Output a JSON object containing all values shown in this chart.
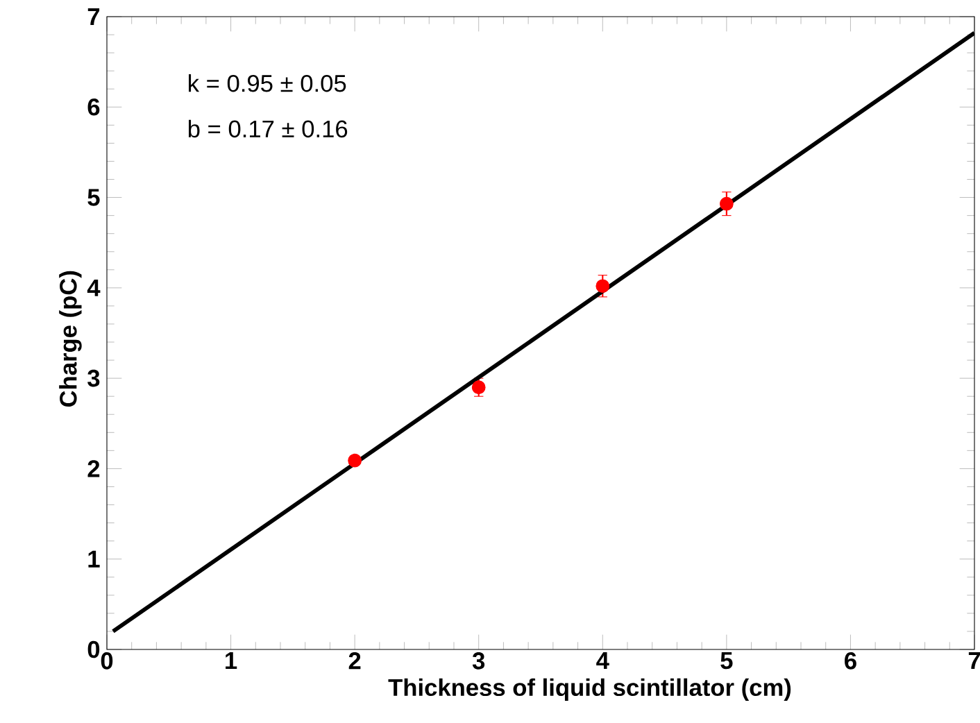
{
  "chart_data": {
    "type": "scatter",
    "xlabel": "Thickness of liquid scintillator (cm)",
    "ylabel": "Charge (pC)",
    "xlim": [
      0,
      7
    ],
    "ylim": [
      0,
      7
    ],
    "xticks": [
      0,
      1,
      2,
      3,
      4,
      5,
      6,
      7
    ],
    "yticks": [
      0,
      1,
      2,
      3,
      4,
      5,
      6,
      7
    ],
    "annotations": [
      "k = 0.95 ± 0.05",
      "b = 0.17 ± 0.16"
    ],
    "series": [
      {
        "color": "#ff0000",
        "marker": "circle",
        "x": [
          2,
          3,
          4,
          5
        ],
        "values": [
          2.09,
          2.9,
          4.02,
          4.93
        ],
        "errors": [
          0.05,
          0.1,
          0.12,
          0.13
        ]
      },
      {
        "type": "line",
        "color": "#000000",
        "marker": "none",
        "line_style": "solid",
        "x": [
          0.05,
          7
        ],
        "values": [
          0.2,
          6.82
        ]
      }
    ]
  }
}
